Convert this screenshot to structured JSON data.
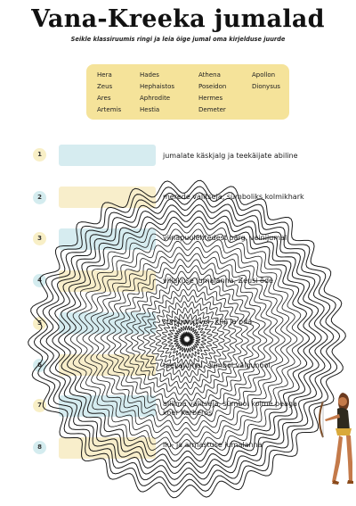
{
  "header": {
    "title": "Vana-Kreeka jumalad",
    "subtitle": "Seikle klassiruumis ringi ja leia õige jumal oma kirjelduse juurde"
  },
  "word_bank": [
    [
      "Hera",
      "Hades",
      "Athena",
      "Apollon"
    ],
    [
      "Zeus",
      "Hephaistos",
      "Poseidon",
      "Dionysus"
    ],
    [
      "Ares",
      "Aphrodite",
      "Hermes"
    ],
    [
      "Artemis",
      "Hestia",
      "Demeter"
    ]
  ],
  "clues": [
    {
      "num": "1",
      "text": "jumalate käskjalg ja teekäijate abiline"
    },
    {
      "num": "2",
      "text": "merede valitseja, sümboliks kolmikhark"
    },
    {
      "num": "3",
      "text": "viinapuulehtedest pärg, veinijumal"
    },
    {
      "num": "4",
      "text": "viljakuse jumalanna, Zeusi õde"
    },
    {
      "num": "5",
      "text": "sümbol kiiver, kilp ja oda"
    },
    {
      "num": "6",
      "text": "taevajumal, sümbol välgunool"
    },
    {
      "num": "7",
      "text": "allilma valitseja, sümbol kolme peaga",
      "text2": "koer Kerberos"
    },
    {
      "num": "8",
      "text": "ilu- ja armastuse jumalanna"
    }
  ],
  "colors": {
    "bank": "#f5e39a",
    "blue": "#d6ecf0",
    "yellow": "#f8eecb"
  }
}
